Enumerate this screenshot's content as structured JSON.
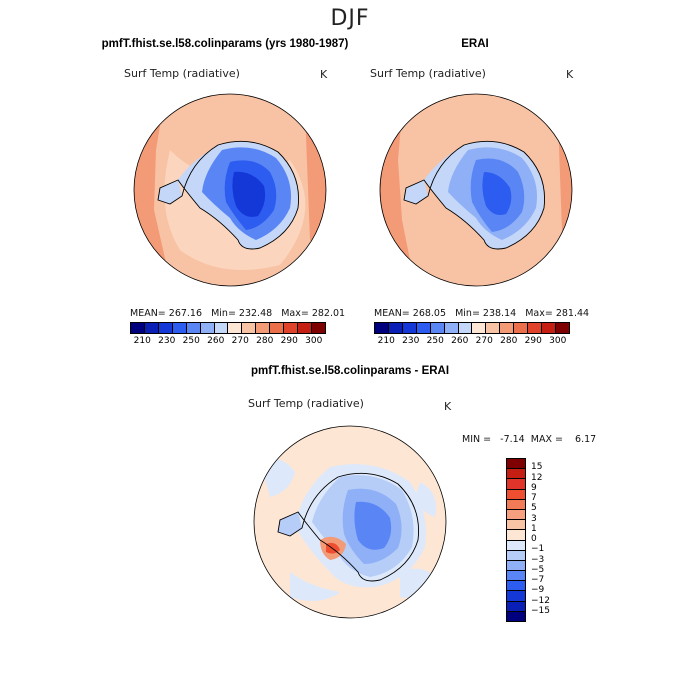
{
  "figure": {
    "season": "DJF"
  },
  "panels": {
    "model": {
      "title": "pmfT.fhist.se.l58.colinparams (yrs 1980-1987)",
      "variable": "Surf Temp (radiative)",
      "units": "K",
      "stats": "MEAN= 267.16   Min= 232.48   Max= 282.01",
      "mean": 267.16,
      "min": 232.48,
      "max": 282.01
    },
    "obs": {
      "title": "ERAI",
      "variable": "Surf Temp (radiative)",
      "units": "K",
      "stats": "MEAN= 268.05   Min= 238.14   Max= 281.44",
      "mean": 268.05,
      "min": 238.14,
      "max": 281.44
    },
    "diff": {
      "title": "pmfT.fhist.se.l58.colinparams - ERAI",
      "variable": "Surf Temp (radiative)",
      "units": "K",
      "stats": "MIN =   -7.14  MAX =    6.17",
      "min": -7.14,
      "max": 6.17
    }
  },
  "colorbars": {
    "absolute": {
      "labels": [
        "210",
        "230",
        "250",
        "260",
        "270",
        "280",
        "290",
        "300"
      ],
      "colors": [
        "#00007f",
        "#0a1fb5",
        "#1438d8",
        "#2d5cf0",
        "#5a86f5",
        "#8fb0f7",
        "#c4d7f8",
        "#fde6d4",
        "#f8c2a4",
        "#f39a77",
        "#ec6f4c",
        "#e0432a",
        "#c41f12",
        "#7f0000"
      ]
    },
    "difference": {
      "labels": [
        "15",
        "12",
        "9",
        "7",
        "5",
        "3",
        "1",
        "0",
        "−1",
        "−3",
        "−5",
        "−7",
        "−9",
        "−12",
        "−15"
      ],
      "colors": [
        "#7f0000",
        "#c41f12",
        "#e0332a",
        "#ee4f30",
        "#f27b57",
        "#f6a07f",
        "#f9c3a6",
        "#fde6d4",
        "#dde9fb",
        "#b6cdf8",
        "#8fb0f7",
        "#5a86f5",
        "#2d5cf0",
        "#1438d8",
        "#0a1fb5",
        "#00007f"
      ]
    }
  },
  "colors": {
    "land_stroke": "#000000",
    "map_border": "#000000"
  }
}
